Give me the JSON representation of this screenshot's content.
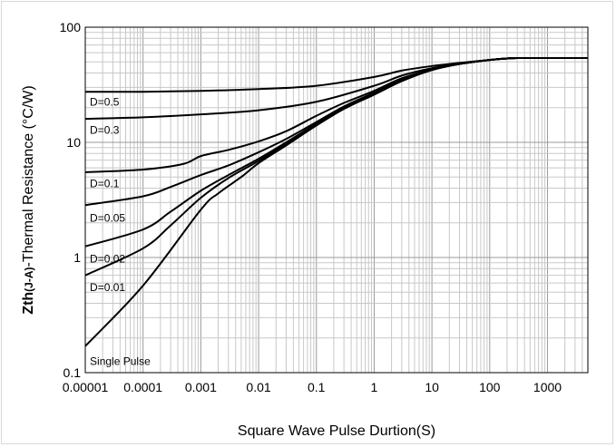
{
  "chart_data": {
    "type": "line",
    "title": "",
    "xlabel": "Square Wave Pulse Durtion(S)",
    "ylabel_bold": "Zth",
    "ylabel_sub": "(J-A)",
    "ylabel_rest": "-Thermal  Resistance (°C/W)",
    "x_scale": "log",
    "y_scale": "log",
    "xlim": [
      1e-05,
      5000
    ],
    "ylim": [
      0.1,
      100
    ],
    "grid": true,
    "x_tick_labels": [
      {
        "value": 1e-05,
        "label": "0.00001"
      },
      {
        "value": 0.0001,
        "label": "0.0001"
      },
      {
        "value": 0.001,
        "label": "0.001"
      },
      {
        "value": 0.01,
        "label": "0.01"
      },
      {
        "value": 0.1,
        "label": "0.1"
      },
      {
        "value": 1,
        "label": "1"
      },
      {
        "value": 10,
        "label": "10"
      },
      {
        "value": 100,
        "label": "100"
      },
      {
        "value": 1000,
        "label": "1000"
      }
    ],
    "y_tick_labels": [
      {
        "value": 0.1,
        "label": "0.1"
      },
      {
        "value": 1,
        "label": "1"
      },
      {
        "value": 10,
        "label": "10"
      },
      {
        "value": 100,
        "label": "100"
      }
    ],
    "series": [
      {
        "name": "D=0.5",
        "label_at": [
          1.2e-05,
          22.5
        ],
        "x": [
          1e-05,
          0.0001,
          0.001,
          0.01,
          0.1,
          1,
          3,
          10,
          30,
          100,
          200,
          300,
          1000,
          5000
        ],
        "y": [
          27.5,
          27.5,
          28,
          29,
          31,
          37,
          42,
          46,
          49,
          52,
          53.5,
          54,
          54,
          54
        ]
      },
      {
        "name": "D=0.3",
        "label_at": [
          1.2e-05,
          12.8
        ],
        "x": [
          1e-05,
          0.0001,
          0.001,
          0.01,
          0.1,
          1,
          3,
          10,
          30,
          100,
          200,
          300,
          1000,
          5000
        ],
        "y": [
          16,
          16.5,
          17.5,
          19,
          22.5,
          31,
          38,
          44,
          48,
          52,
          53.5,
          54,
          54,
          54
        ]
      },
      {
        "name": "D=0.1",
        "label_at": [
          1.2e-05,
          4.4
        ],
        "x": [
          1e-05,
          0.0001,
          0.0005,
          0.001,
          0.003,
          0.01,
          0.03,
          0.1,
          0.3,
          1,
          3,
          10,
          30,
          100,
          200,
          300,
          1000,
          5000
        ],
        "y": [
          5.5,
          5.8,
          6.5,
          7.6,
          8.6,
          10.2,
          12.5,
          17,
          22,
          28,
          36,
          43,
          48,
          52,
          53.5,
          54,
          54,
          54
        ]
      },
      {
        "name": "D=0.05",
        "label_at": [
          1.2e-05,
          2.2
        ],
        "x": [
          1e-05,
          0.0001,
          0.0003,
          0.001,
          0.003,
          0.01,
          0.03,
          0.1,
          0.3,
          1,
          3,
          10,
          30,
          100,
          200,
          300,
          1000,
          5000
        ],
        "y": [
          2.85,
          3.4,
          4.1,
          5.2,
          6.3,
          8.2,
          10.7,
          15,
          20.5,
          27,
          35,
          43,
          48,
          52,
          53.5,
          54,
          54,
          54
        ]
      },
      {
        "name": "D=0.02",
        "label_at": [
          1.2e-05,
          0.97
        ],
        "x": [
          1e-05,
          0.0001,
          0.0003,
          0.001,
          0.003,
          0.01,
          0.03,
          0.1,
          0.3,
          1,
          3,
          10,
          30,
          100,
          200,
          300,
          1000,
          5000
        ],
        "y": [
          1.25,
          1.75,
          2.5,
          3.8,
          5.2,
          7.2,
          10,
          14.5,
          20,
          26.5,
          34.5,
          42.5,
          48,
          52,
          53.5,
          54,
          54,
          54
        ]
      },
      {
        "name": "D=0.01",
        "label_at": [
          1.2e-05,
          0.55
        ],
        "x": [
          1e-05,
          0.0001,
          0.0003,
          0.001,
          0.003,
          0.01,
          0.03,
          0.1,
          0.3,
          1,
          3,
          10,
          30,
          100,
          200,
          300,
          1000,
          5000
        ],
        "y": [
          0.7,
          1.2,
          1.9,
          3.3,
          4.9,
          6.9,
          9.7,
          14.2,
          19.7,
          26,
          34,
          42.5,
          48,
          52,
          53.5,
          54,
          54,
          54
        ]
      },
      {
        "name": "Single Pulse",
        "label_at": [
          1.2e-05,
          0.125
        ],
        "x": [
          1e-05,
          0.0001,
          0.001,
          0.002,
          0.005,
          0.01,
          0.03,
          0.1,
          0.3,
          1,
          3,
          10,
          30,
          100,
          200,
          300,
          1000,
          5000
        ],
        "y": [
          0.17,
          0.57,
          2.6,
          3.6,
          5.0,
          6.6,
          9.4,
          14,
          19.5,
          26,
          34,
          42.5,
          48,
          52,
          53.5,
          54,
          54,
          54
        ]
      }
    ]
  }
}
